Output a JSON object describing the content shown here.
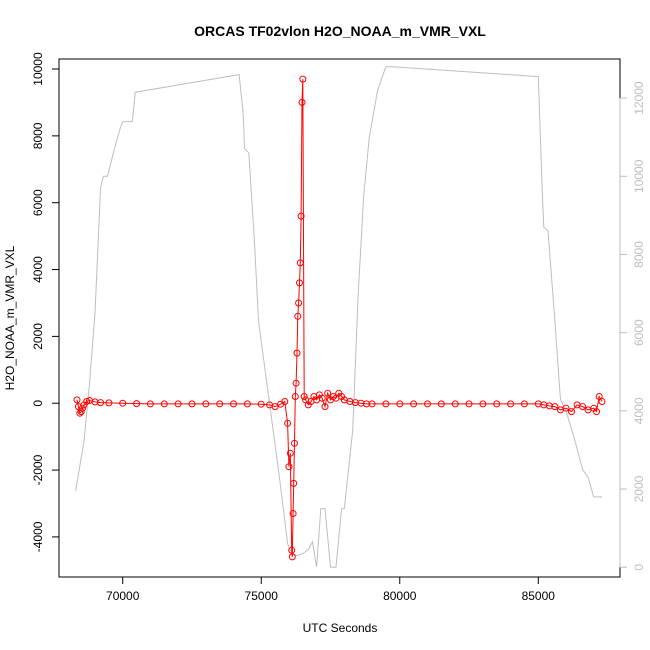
{
  "chart_data": {
    "type": "line",
    "title": "ORCAS TF02vlon H2O_NOAA_m_VMR_VXL",
    "xlabel": "UTC Seconds",
    "ylabel": "H2O_NOAA_m_VMR_VXL",
    "xlim": [
      67700,
      87950
    ],
    "ylim": [
      -5200,
      10300
    ],
    "y2lim": [
      -250,
      13000
    ],
    "x_ticks": [
      70000,
      75000,
      80000,
      85000
    ],
    "x_tick_labels": [
      "70000",
      "75000",
      "80000",
      "85000"
    ],
    "y_ticks": [
      -4000,
      -2000,
      0,
      2000,
      4000,
      6000,
      8000,
      10000
    ],
    "y_tick_labels": [
      "-4000",
      "-2000",
      "0",
      "2000",
      "4000",
      "6000",
      "8000",
      "10000"
    ],
    "y2_ticks": [
      0,
      2000,
      4000,
      6000,
      8000,
      10000,
      12000
    ],
    "y2_tick_labels": [
      "0",
      "2000",
      "4000",
      "6000",
      "8000",
      "10000",
      "12000"
    ],
    "grid": false,
    "colors": {
      "primary": "#ff0000",
      "secondary": "#bebebe",
      "axis": "#000000"
    },
    "series": [
      {
        "axis": "right",
        "style": "line",
        "x": [
          68300,
          68600,
          68800,
          69000,
          69200,
          69300,
          69450,
          69700,
          69900,
          70000,
          70350,
          70450,
          74200,
          74350,
          74400,
          74550,
          74750,
          74900,
          75300,
          75600,
          75800,
          75950,
          76100,
          76300,
          76500,
          76700,
          76850,
          77000,
          77150,
          77300,
          77500,
          77700,
          77900,
          78000,
          78300,
          78500,
          78700,
          78900,
          79200,
          79500,
          79750,
          85000,
          85150,
          85200,
          85350,
          85600,
          85800,
          86000,
          86300,
          86600,
          86800,
          87000,
          87200,
          87300
        ],
        "y": [
          1950,
          3200,
          4700,
          6500,
          9700,
          10000,
          10000,
          10700,
          11200,
          11400,
          11400,
          12150,
          12600,
          11600,
          10700,
          10600,
          8400,
          6300,
          4200,
          2600,
          1500,
          600,
          350,
          300,
          350,
          450,
          650,
          0,
          1500,
          1500,
          0,
          0,
          1500,
          1500,
          3500,
          7000,
          9500,
          11000,
          12200,
          12800,
          12800,
          12550,
          9500,
          8700,
          8600,
          6300,
          4300,
          4000,
          3300,
          2500,
          2300,
          1800,
          1800,
          1800
        ]
      },
      {
        "axis": "left",
        "style": "line-points",
        "x": [
          68350,
          68400,
          68450,
          68500,
          68550,
          68600,
          68700,
          68800,
          69000,
          69200,
          69500,
          70000,
          70500,
          71000,
          71500,
          72000,
          72500,
          73000,
          73500,
          74000,
          74500,
          75000,
          75300,
          75500,
          75700,
          75850,
          75950,
          76000,
          76050,
          76100,
          76120,
          76150,
          76170,
          76200,
          76230,
          76260,
          76290,
          76320,
          76350,
          76380,
          76410,
          76440,
          76470,
          76500,
          76550,
          76600,
          76700,
          76800,
          76900,
          77000,
          77100,
          77200,
          77300,
          77400,
          77500,
          77600,
          77700,
          77800,
          77900,
          78000,
          78200,
          78400,
          78600,
          78800,
          79000,
          79500,
          80000,
          80500,
          81000,
          81500,
          82000,
          82500,
          83000,
          83500,
          84000,
          84500,
          85000,
          85200,
          85400,
          85600,
          85800,
          86000,
          86200,
          86400,
          86600,
          86800,
          87000,
          87100,
          87200,
          87300
        ],
        "y": [
          100,
          -100,
          -300,
          -250,
          -150,
          -50,
          50,
          80,
          40,
          20,
          10,
          0,
          -10,
          -20,
          -20,
          -20,
          -20,
          -20,
          -20,
          -20,
          -20,
          -30,
          -50,
          -100,
          -30,
          50,
          -600,
          -1900,
          -1500,
          -4400,
          -4600,
          -3300,
          -2400,
          -1200,
          200,
          600,
          1500,
          2600,
          3000,
          3600,
          4200,
          5600,
          9000,
          9700,
          200,
          100,
          -50,
          50,
          200,
          100,
          250,
          150,
          -100,
          300,
          100,
          200,
          150,
          300,
          200,
          100,
          50,
          20,
          0,
          -20,
          -20,
          -20,
          -20,
          -20,
          -20,
          -20,
          -20,
          -20,
          -20,
          -20,
          -20,
          -20,
          -20,
          -50,
          -80,
          -100,
          -200,
          -150,
          -250,
          -50,
          -100,
          -200,
          -150,
          -250,
          200,
          50
        ]
      }
    ]
  }
}
